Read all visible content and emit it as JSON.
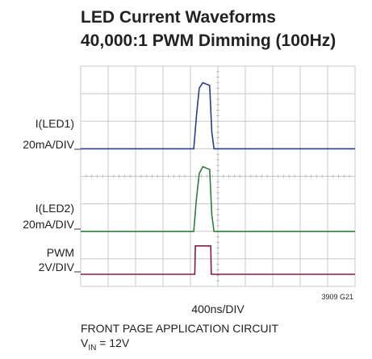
{
  "chart_data": {
    "type": "line",
    "title": [
      "LED Current Waveforms",
      "40,000:1 PWM Dimming (100Hz)"
    ],
    "x_label": "400ns/DIV",
    "figure_id": "3909 G21",
    "notes": [
      "FRONT PAGE APPLICATION CIRCUIT",
      {
        "main": "V",
        "sub": "IN",
        "rest": " = 12V"
      }
    ],
    "xlim": [
      0,
      10
    ],
    "ylim": [
      0,
      8
    ],
    "xticks": [
      0,
      1,
      2,
      3,
      4,
      5,
      6,
      7,
      8,
      9,
      10
    ],
    "yticks": [
      0,
      1,
      2,
      3,
      4,
      5,
      6,
      7,
      8
    ],
    "grid": true,
    "series": [
      {
        "name": "I(LED1)",
        "scale": "20mA/DIV",
        "color": "#2b3d8f",
        "x": [
          0,
          4.12,
          4.22,
          4.32,
          4.45,
          4.7,
          4.78,
          4.86,
          10
        ],
        "values": [
          5,
          5,
          6.2,
          7.2,
          7.4,
          7.3,
          5.6,
          5,
          5
        ]
      },
      {
        "name": "I(LED2)",
        "scale": "20mA/DIV",
        "color": "#2e7d3a",
        "x": [
          0,
          4.12,
          4.22,
          4.32,
          4.45,
          4.7,
          4.78,
          4.86,
          10
        ],
        "values": [
          2,
          2,
          3.2,
          4.1,
          4.35,
          4.25,
          2.6,
          2,
          2
        ]
      },
      {
        "name": "PWM",
        "scale": "2V/DIV",
        "color": "#8b1a3c",
        "x": [
          0,
          4.16,
          4.18,
          4.74,
          4.76,
          10
        ],
        "values": [
          0.44,
          0.44,
          1.47,
          1.47,
          0.44,
          0.44
        ]
      }
    ]
  }
}
